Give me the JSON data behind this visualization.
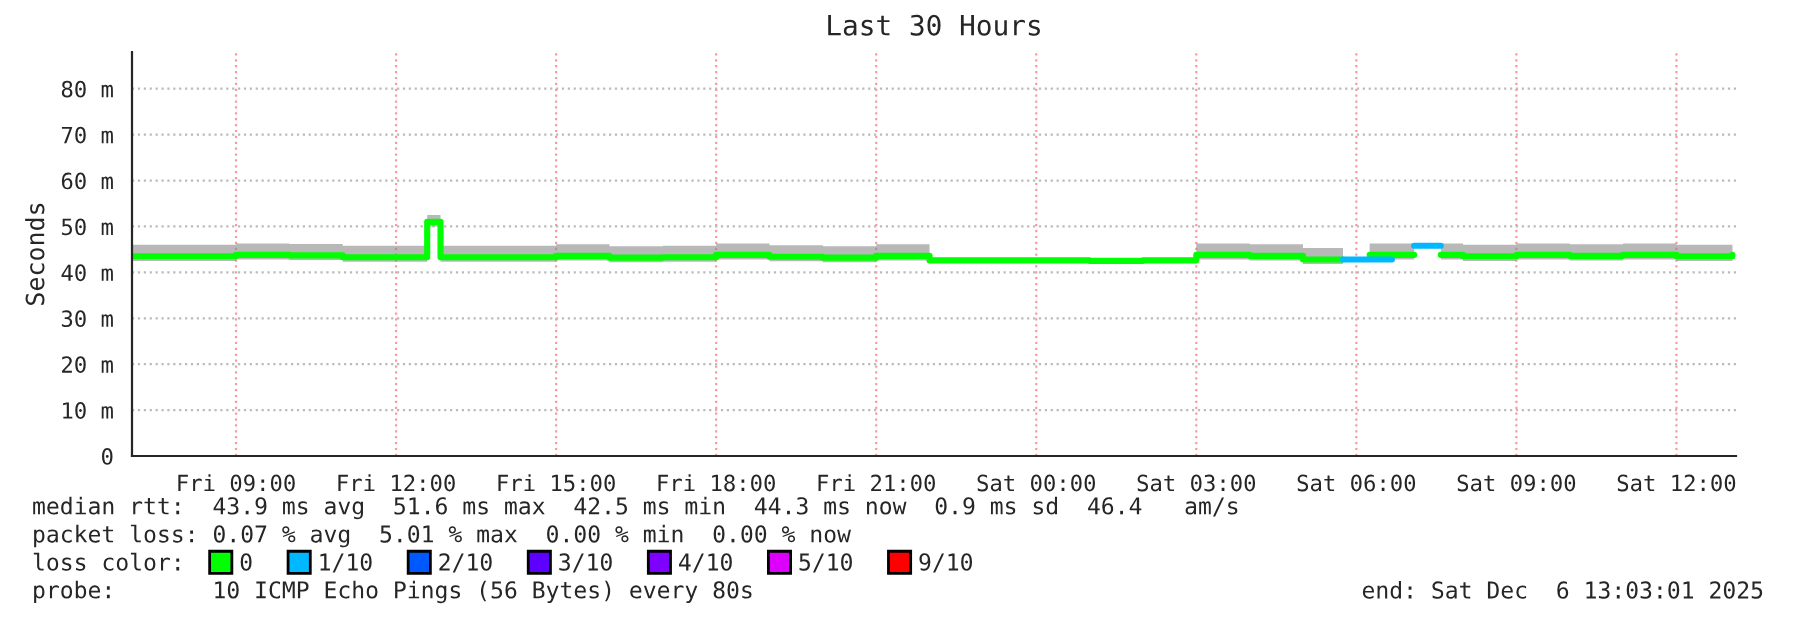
{
  "chart_data": {
    "type": "step",
    "title": "Last 30 Hours",
    "ylabel": "Seconds",
    "xlim": [
      "2025-12-05T07:03",
      "2025-12-06T13:07"
    ],
    "xticks": [
      {
        "value": "2025-12-05T09:00",
        "label": "Fri 09:00"
      },
      {
        "value": "2025-12-05T12:00",
        "label": "Fri 12:00"
      },
      {
        "value": "2025-12-05T15:00",
        "label": "Fri 15:00"
      },
      {
        "value": "2025-12-05T18:00",
        "label": "Fri 18:00"
      },
      {
        "value": "2025-12-05T21:00",
        "label": "Fri 21:00"
      },
      {
        "value": "2025-12-06T00:00",
        "label": "Sat 00:00"
      },
      {
        "value": "2025-12-06T03:00",
        "label": "Sat 03:00"
      },
      {
        "value": "2025-12-06T06:00",
        "label": "Sat 06:00"
      },
      {
        "value": "2025-12-06T09:00",
        "label": "Sat 09:00"
      },
      {
        "value": "2025-12-06T12:00",
        "label": "Sat 12:00"
      }
    ],
    "ylim": [
      0,
      88
    ],
    "yticks": [
      0,
      {
        "value": 10,
        "label": "10 m"
      },
      {
        "value": 20,
        "label": "20 m"
      },
      {
        "value": 30,
        "label": "30 m"
      },
      {
        "value": 40,
        "label": "40 m"
      },
      {
        "value": 50,
        "label": "50 m"
      },
      {
        "value": 60,
        "label": "60 m"
      },
      {
        "value": 70,
        "label": "70 m"
      },
      {
        "value": 80,
        "label": "80 m"
      }
    ],
    "grid": true,
    "legend": "bottom",
    "marker": "none",
    "line_style": "solid",
    "series": [
      {
        "name": "0",
        "color": "#00ff00",
        "x": [
          "2025-12-05T07:03",
          "2025-12-05T08:00",
          "2025-12-05T09:00",
          "2025-12-05T10:00",
          "2025-12-05T11:00",
          "2025-12-05T12:00",
          "2025-12-05T12:35",
          "2025-12-05T12:50",
          "2025-12-05T14:00",
          "2025-12-05T15:00",
          "2025-12-05T16:00",
          "2025-12-05T17:00",
          "2025-12-05T18:00",
          "2025-12-05T19:00",
          "2025-12-05T20:00",
          "2025-12-05T21:00",
          "2025-12-05T22:00",
          "2025-12-05T23:00",
          "2025-12-06T00:00",
          "2025-12-06T01:00",
          "2025-12-06T02:00",
          "2025-12-06T03:00",
          "2025-12-06T04:00",
          "2025-12-06T05:00",
          "2025-12-06T05:45",
          "2025-12-06T06:15",
          "2025-12-06T07:05",
          "2025-12-06T07:35",
          "2025-12-06T08:00",
          "2025-12-06T09:00",
          "2025-12-06T10:00",
          "2025-12-06T11:00",
          "2025-12-06T12:00",
          "2025-12-06T13:03"
        ],
        "values": [
          43.5,
          43.5,
          43.8,
          43.7,
          43.3,
          43.3,
          51,
          43.3,
          43.3,
          43.6,
          43.2,
          43.3,
          43.8,
          43.4,
          43.2,
          43.6,
          42.6,
          42.6,
          42.6,
          42.5,
          42.6,
          43.8,
          43.6,
          42.8,
          null,
          43.8,
          null,
          43.8,
          43.5,
          43.8,
          43.6,
          43.8,
          43.5,
          43.8
        ],
        "lower": [
          42.5,
          42.5,
          42.8,
          42.7,
          42.3,
          42.3,
          50,
          42.3,
          42.3,
          42.6,
          42.2,
          42.3,
          42.8,
          42.4,
          42.2,
          42.6,
          42.3,
          42.3,
          42.3,
          42.2,
          42.3,
          42.8,
          42.6,
          41.8,
          null,
          42.8,
          null,
          42.8,
          42.5,
          42.8,
          42.6,
          42.8,
          42.5,
          42.8
        ],
        "upper": [
          46,
          46,
          46.3,
          46.2,
          45.8,
          45.8,
          52.5,
          45.8,
          45.8,
          46.1,
          45.7,
          45.8,
          46.3,
          45.9,
          45.7,
          46.1,
          43.2,
          43.2,
          43.2,
          43.1,
          43.2,
          46.3,
          46.1,
          45.3,
          null,
          46.3,
          null,
          46.3,
          46,
          46.3,
          46.1,
          46.3,
          46,
          46.3
        ]
      },
      {
        "name": "1/10",
        "color": "#00b8ff",
        "x": [
          "2025-12-06T05:45",
          "2025-12-06T06:15",
          "2025-12-06T06:40",
          "2025-12-06T07:05",
          "2025-12-06T07:35"
        ],
        "values": [
          42.8,
          42.8,
          null,
          45.8,
          45.8
        ]
      },
      {
        "name": "2/10",
        "color": "#0059ff"
      },
      {
        "name": "3/10",
        "color": "#5e00ff"
      },
      {
        "name": "4/10",
        "color": "#7e00ff"
      },
      {
        "name": "5/10",
        "color": "#dd00ff"
      },
      {
        "name": "9/10",
        "color": "#ff0000"
      }
    ],
    "annotations": [
      "median rtt:  43.9 ms avg  51.6 ms max  42.5 ms min  44.3 ms now  0.9 ms sd  46.4   am/s",
      "packet loss: 0.07 % avg  5.01 % max  0.00 % min  0.00 % now",
      "loss color:",
      "probe:       10 ICMP Echo Pings (56 Bytes) every 80s",
      "end: Sat Dec  6 13:03:01 2025"
    ]
  }
}
